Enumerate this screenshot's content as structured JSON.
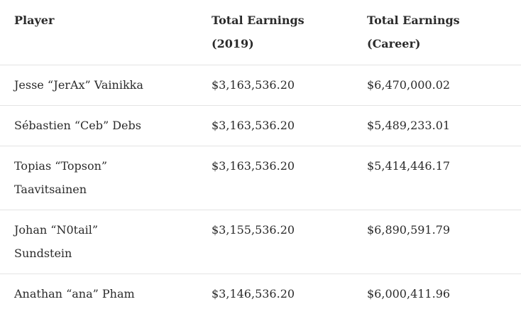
{
  "table": {
    "headers": {
      "player": "Player",
      "earnings_2019_line1": "Total Earnings",
      "earnings_2019_line2": "(2019)",
      "earnings_career_line1": "Total Earnings",
      "earnings_career_line2": "(Career)"
    },
    "rows": [
      {
        "player": "Jesse “JerAx” Vainikka",
        "earnings_2019": "$3,163,536.20",
        "earnings_career": "$6,470,000.02"
      },
      {
        "player": "Sébastien “Ceb” Debs",
        "earnings_2019": "$3,163,536.20",
        "earnings_career": "$5,489,233.01"
      },
      {
        "player": "Topias “Topson” Taavitsainen",
        "earnings_2019": "$3,163,536.20",
        "earnings_career": "$5,414,446.17"
      },
      {
        "player": "Johan “N0tail” Sundstein",
        "earnings_2019": "$3,155,536.20",
        "earnings_career": "$6,890,591.79"
      },
      {
        "player": "Anathan “ana” Pham",
        "earnings_2019": "$3,146,536.20",
        "earnings_career": "$6,000,411.96"
      }
    ]
  }
}
